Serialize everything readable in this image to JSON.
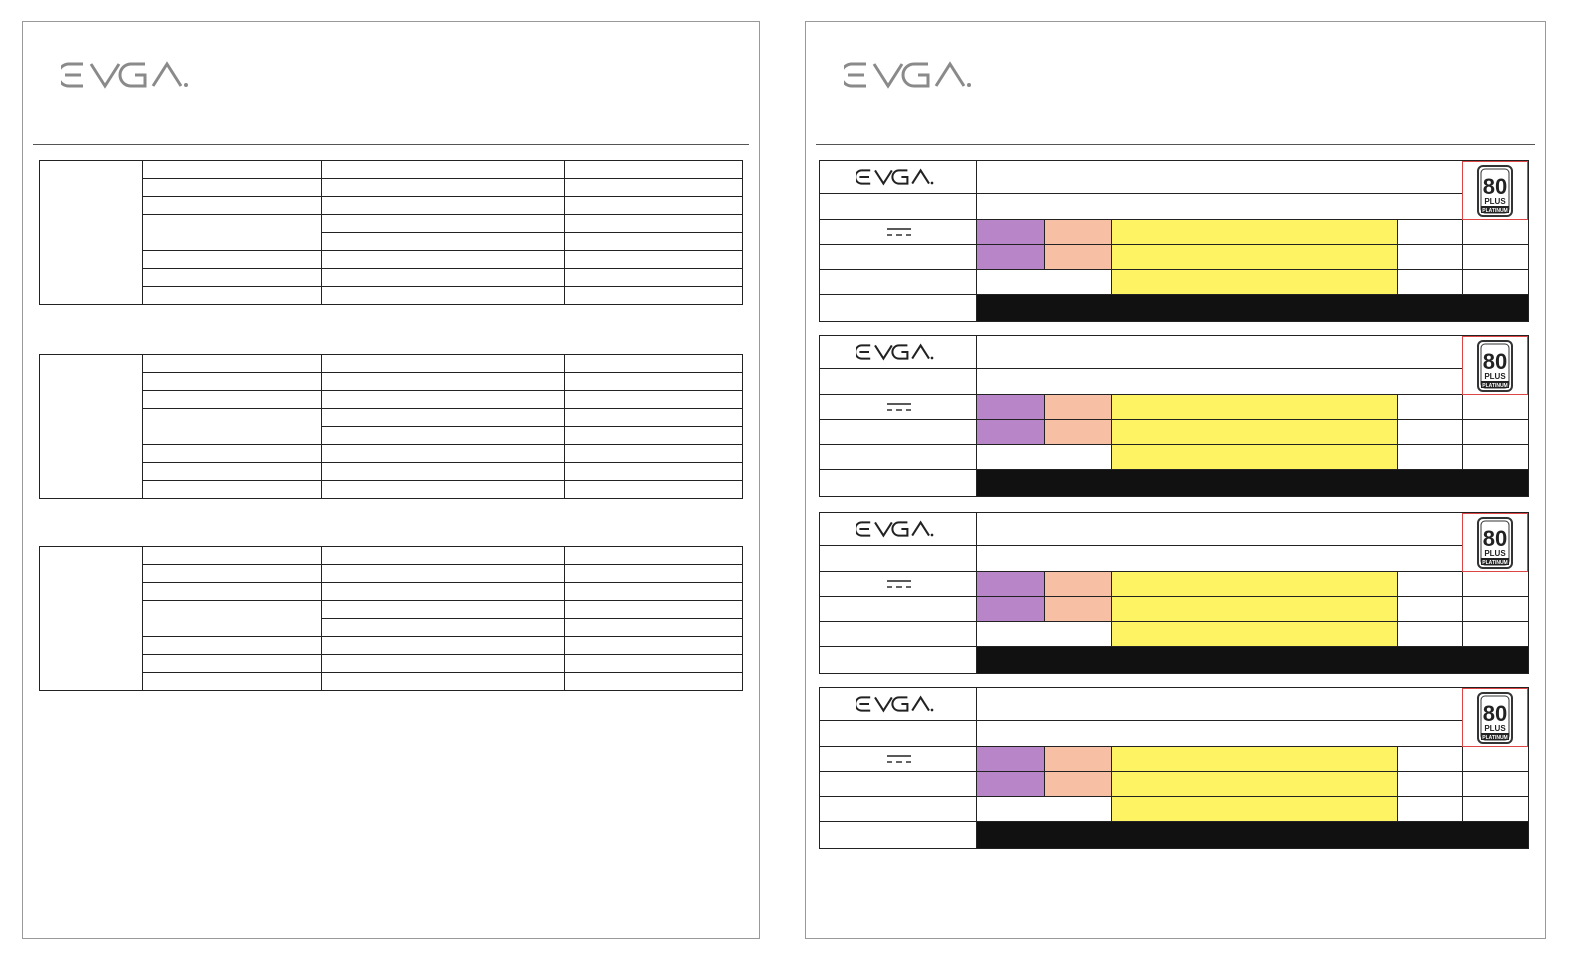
{
  "brand": {
    "logo_text": "EVGA",
    "logo_color": "#8a8a8a",
    "label_logo_color": "#222222"
  },
  "badge": {
    "number": "80",
    "plus": "PLUS",
    "tier": "PLATINUM"
  },
  "colors": {
    "purple": "#b985c9",
    "peach": "#f7c0a4",
    "yellow": "#fdf363",
    "black": "#111111",
    "badge_border": "#dd4444"
  },
  "spec_tables": [
    {
      "rows": [
        [
          "",
          "",
          ""
        ],
        [
          "",
          "",
          ""
        ],
        [
          "",
          "",
          ""
        ],
        [
          "",
          "",
          ""
        ],
        [
          "",
          "",
          ""
        ],
        [
          "",
          "",
          ""
        ],
        [
          "",
          "",
          ""
        ],
        [
          "",
          "",
          ""
        ]
      ]
    },
    {
      "rows": [
        [
          "",
          "",
          ""
        ],
        [
          "",
          "",
          ""
        ],
        [
          "",
          "",
          ""
        ],
        [
          "",
          "",
          ""
        ],
        [
          "",
          "",
          ""
        ],
        [
          "",
          "",
          ""
        ],
        [
          "",
          "",
          ""
        ],
        [
          "",
          "",
          ""
        ]
      ]
    },
    {
      "rows": [
        [
          "",
          "",
          ""
        ],
        [
          "",
          "",
          ""
        ],
        [
          "",
          "",
          ""
        ],
        [
          "",
          "",
          ""
        ],
        [
          "",
          "",
          ""
        ],
        [
          "",
          "",
          ""
        ],
        [
          "",
          "",
          ""
        ],
        [
          "",
          "",
          ""
        ]
      ]
    }
  ],
  "labels": [
    {
      "id": 1
    },
    {
      "id": 2
    },
    {
      "id": 3
    },
    {
      "id": 4
    }
  ]
}
